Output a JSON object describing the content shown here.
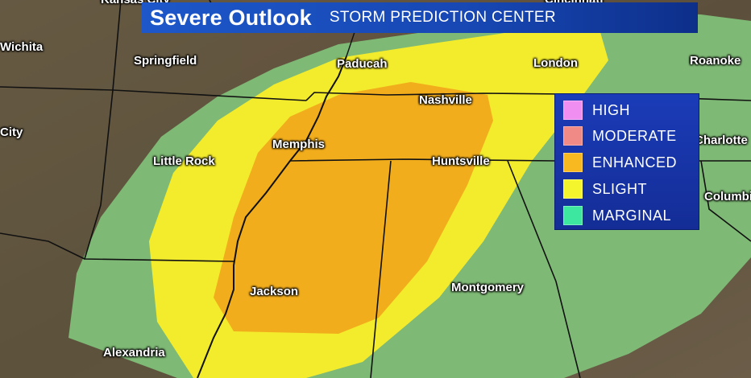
{
  "title": {
    "main": "Severe Outlook",
    "source": "STORM PREDICTION CENTER"
  },
  "legend": [
    {
      "label": "HIGH",
      "color": "#f08ef2"
    },
    {
      "label": "MODERATE",
      "color": "#f08a86"
    },
    {
      "label": "ENHANCED",
      "color": "#f8b820"
    },
    {
      "label": "SLIGHT",
      "color": "#f5f52e"
    },
    {
      "label": "MARGINAL",
      "color": "#3ee7a0"
    }
  ],
  "cities": {
    "kansas_city": "Kansas City",
    "cincinnati": "Cincinnati",
    "wichita": "Wichita",
    "springfield": "Springfield",
    "paducah": "Paducah",
    "london": "London",
    "roanoke": "Roanoke",
    "nashville": "Nashville",
    "city_partial": "City",
    "charlotte": "Charlotte",
    "memphis": "Memphis",
    "little_rock": "Little Rock",
    "huntsville": "Huntsville",
    "columbia": "Columbia",
    "jackson": "Jackson",
    "montgomery": "Montgomery",
    "alexandria": "Alexandria"
  },
  "risk_colors": {
    "marginal_fill": "#7fbf78",
    "slight_fill": "#f3ec2c",
    "enhanced_fill": "#f2ad1c"
  }
}
